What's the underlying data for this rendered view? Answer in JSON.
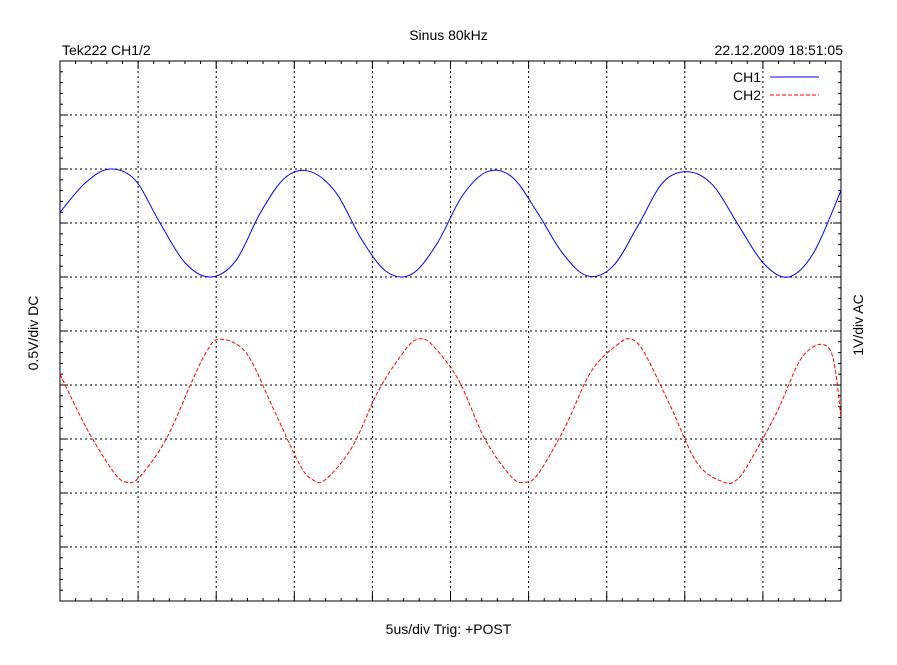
{
  "header": {
    "title": "Sinus 80kHz",
    "left": "Tek222 CH1/2",
    "right": "22.12.2009 18:51:05"
  },
  "footer": {
    "xlabel": "5us/div  Trig: +POST"
  },
  "axes": {
    "ylabel_left": "0.5V/div DC",
    "ylabel_right": "1V/div AC"
  },
  "chart_data": {
    "type": "line",
    "title": "Sinus 80kHz",
    "xlabel": "5us/div  Trig: +POST",
    "ylabel": "0.5V/div DC",
    "y2label": "1V/div AC",
    "xlim": [
      0,
      10
    ],
    "ylim": [
      0,
      10
    ],
    "x_units": "div",
    "y_units": "div",
    "grid": true,
    "grid_style": "dotted",
    "legend_position": "top-right",
    "series": [
      {
        "name": "CH1",
        "color": "#0000ff",
        "style": "solid",
        "x": [
          0.0,
          0.33,
          0.64,
          0.96,
          1.28,
          1.61,
          1.93,
          2.25,
          2.57,
          2.89,
          3.21,
          3.54,
          3.86,
          4.18,
          4.5,
          4.82,
          5.15,
          5.47,
          5.79,
          6.11,
          6.43,
          6.75,
          7.08,
          7.4,
          7.72,
          8.04,
          8.36,
          8.69,
          9.01,
          9.33,
          9.65,
          10.0
        ],
        "y": [
          7.2,
          7.75,
          8.0,
          7.8,
          7.0,
          6.25,
          6.0,
          6.3,
          7.2,
          7.85,
          7.95,
          7.55,
          6.7,
          6.1,
          6.05,
          6.6,
          7.5,
          7.95,
          7.85,
          7.2,
          6.45,
          6.02,
          6.2,
          6.95,
          7.75,
          7.95,
          7.7,
          6.95,
          6.25,
          6.0,
          6.45,
          7.6
        ]
      },
      {
        "name": "CH2",
        "color": "#ff0000",
        "style": "dashed",
        "x": [
          0.0,
          0.34,
          0.68,
          0.85,
          1.02,
          1.36,
          1.7,
          1.87,
          2.04,
          2.38,
          2.72,
          3.06,
          3.23,
          3.4,
          3.74,
          4.08,
          4.42,
          4.59,
          4.76,
          5.1,
          5.44,
          5.78,
          5.95,
          6.12,
          6.46,
          6.8,
          7.14,
          7.31,
          7.48,
          7.82,
          8.16,
          8.5,
          8.67,
          8.84,
          9.18,
          9.52,
          9.86,
          10.0
        ],
        "y": [
          4.2,
          3.2,
          2.4,
          2.2,
          2.3,
          3.0,
          4.1,
          4.6,
          4.85,
          4.6,
          3.6,
          2.55,
          2.25,
          2.25,
          2.85,
          3.9,
          4.65,
          4.85,
          4.75,
          4.1,
          3.0,
          2.3,
          2.2,
          2.35,
          3.2,
          4.25,
          4.75,
          4.85,
          4.6,
          3.6,
          2.55,
          2.2,
          2.25,
          2.6,
          3.5,
          4.55,
          4.65,
          3.4
        ]
      }
    ]
  }
}
